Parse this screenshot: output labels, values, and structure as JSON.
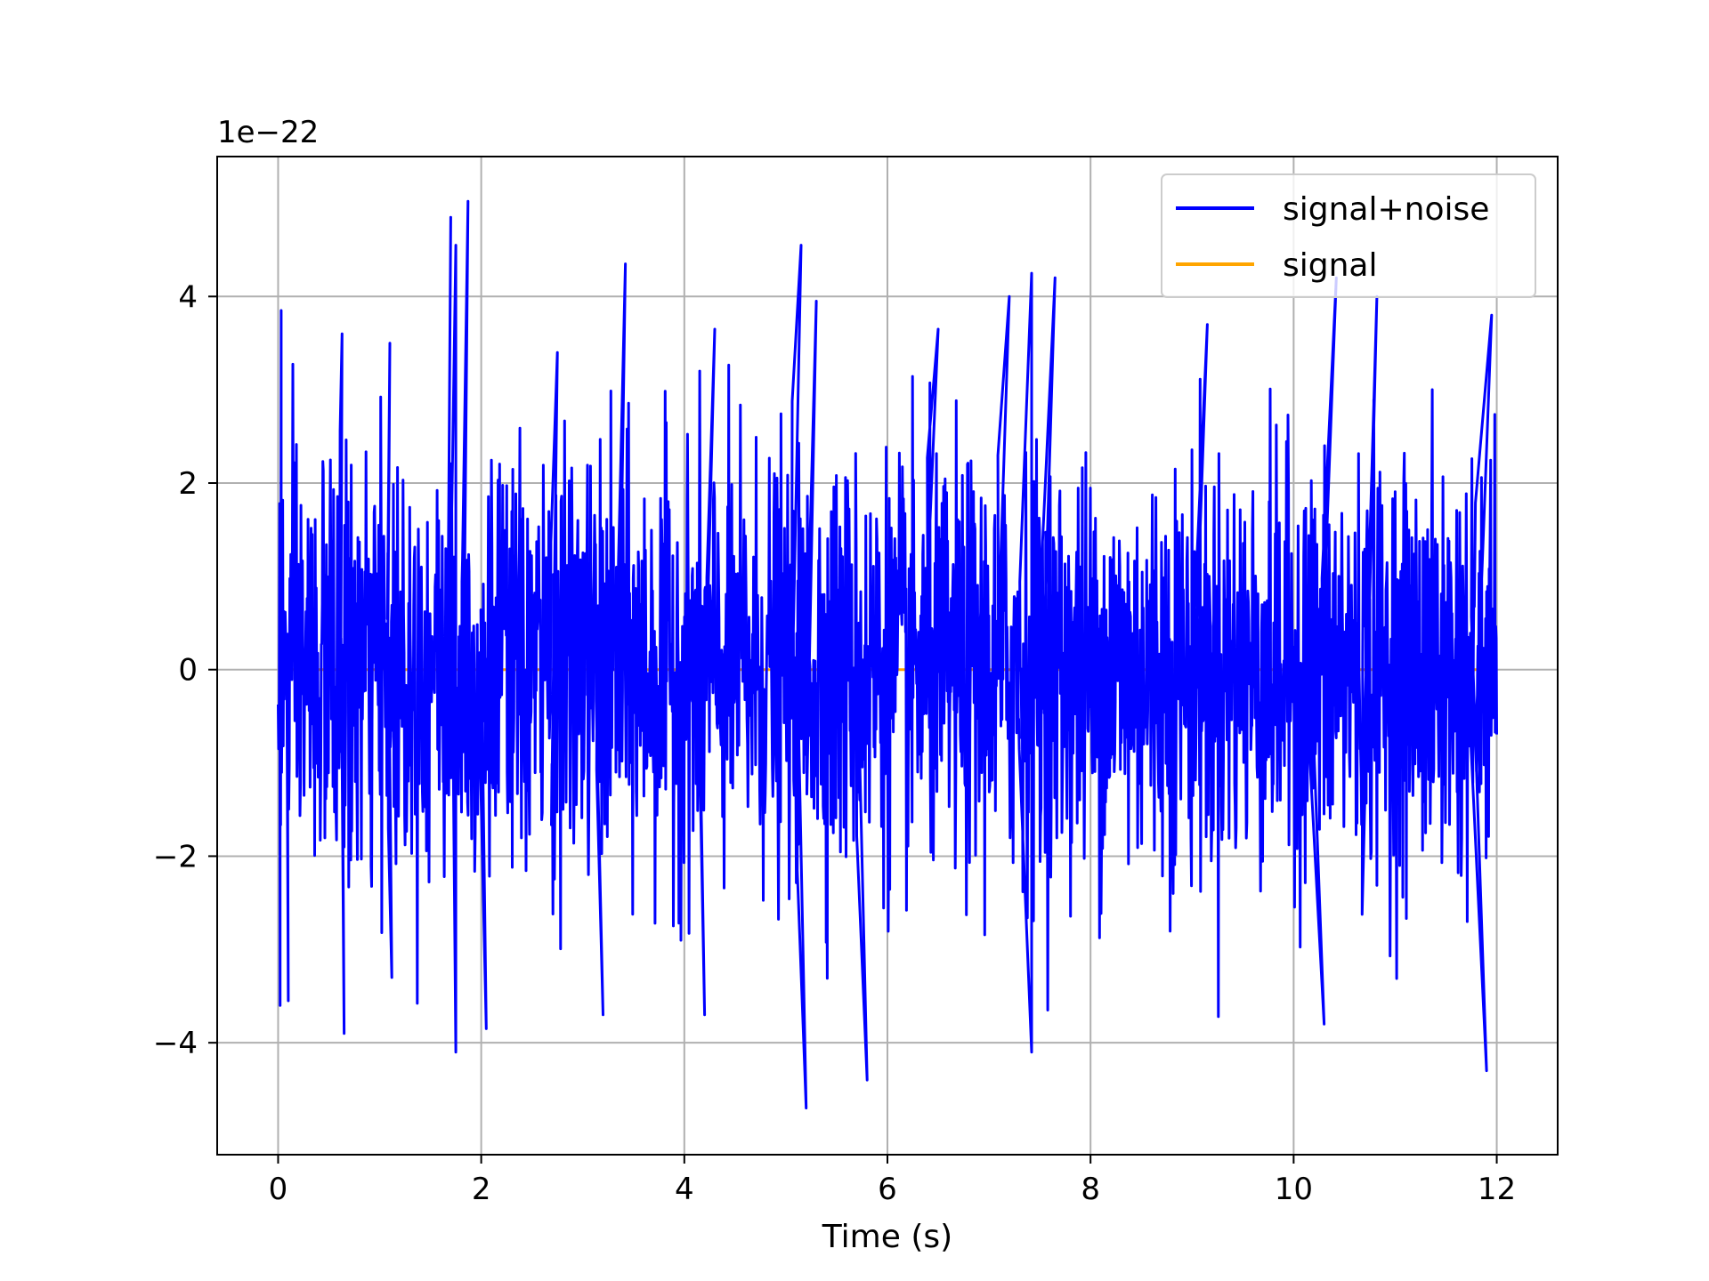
{
  "chart_data": {
    "type": "line",
    "title": "",
    "xlabel": "Time (s)",
    "ylabel": "",
    "y_offset_label": "1e−22",
    "xlim": [
      -0.6,
      12.6
    ],
    "ylim": [
      -5.2,
      5.5
    ],
    "x_ticks": [
      0,
      2,
      4,
      6,
      8,
      10,
      12
    ],
    "x_tick_labels": [
      "0",
      "2",
      "4",
      "6",
      "8",
      "10",
      "12"
    ],
    "y_ticks": [
      -4,
      -2,
      0,
      2,
      4
    ],
    "y_tick_labels": [
      "−4",
      "−2",
      "0",
      "2",
      "4"
    ],
    "grid": true,
    "legend_position": "top-right",
    "series": [
      {
        "name": "signal+noise",
        "color": "#0000ff",
        "x_range": [
          0,
          12
        ],
        "sample_count": 2400,
        "envelope_min": -4.7,
        "envelope_max": 5.02,
        "peaks": [
          {
            "x": 0.03,
            "y": 3.85
          },
          {
            "x": 0.02,
            "y": -3.6
          },
          {
            "x": 0.1,
            "y": -3.55
          },
          {
            "x": 0.63,
            "y": 3.6
          },
          {
            "x": 0.65,
            "y": -3.9
          },
          {
            "x": 1.1,
            "y": 3.5
          },
          {
            "x": 1.12,
            "y": -3.3
          },
          {
            "x": 1.7,
            "y": 4.85
          },
          {
            "x": 1.75,
            "y": 4.55
          },
          {
            "x": 1.75,
            "y": -4.1
          },
          {
            "x": 1.87,
            "y": 5.02
          },
          {
            "x": 2.05,
            "y": -3.85
          },
          {
            "x": 2.75,
            "y": 3.4
          },
          {
            "x": 3.42,
            "y": 4.35
          },
          {
            "x": 3.2,
            "y": -3.7
          },
          {
            "x": 4.3,
            "y": 3.65
          },
          {
            "x": 4.2,
            "y": -3.7
          },
          {
            "x": 5.15,
            "y": 4.55
          },
          {
            "x": 5.2,
            "y": -4.7
          },
          {
            "x": 5.3,
            "y": 3.95
          },
          {
            "x": 5.8,
            "y": -4.4
          },
          {
            "x": 6.5,
            "y": 3.65
          },
          {
            "x": 7.2,
            "y": 4.0
          },
          {
            "x": 7.42,
            "y": 4.25
          },
          {
            "x": 7.42,
            "y": -4.1
          },
          {
            "x": 7.65,
            "y": 4.2
          },
          {
            "x": 9.15,
            "y": 3.7
          },
          {
            "x": 10.3,
            "y": -3.8
          },
          {
            "x": 10.42,
            "y": 4.2
          },
          {
            "x": 10.82,
            "y": 4.0
          },
          {
            "x": 11.9,
            "y": -4.3
          },
          {
            "x": 11.95,
            "y": 3.8
          }
        ]
      },
      {
        "name": "signal",
        "color": "#ffa500",
        "x_range": [
          0,
          12
        ],
        "y": 0
      }
    ]
  }
}
